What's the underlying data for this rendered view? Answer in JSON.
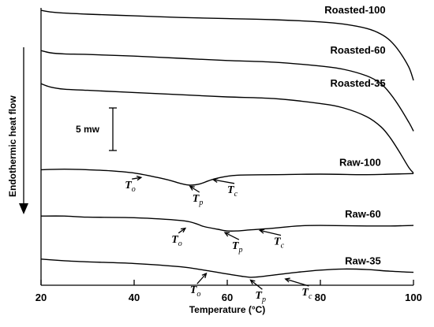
{
  "chart_data": {
    "type": "line",
    "title": "",
    "xlabel": "Temperature (°C)",
    "ylabel": "Endothermic heat flow",
    "xlim": [
      20,
      100
    ],
    "x_ticks": [
      20,
      40,
      60,
      80,
      100
    ],
    "grid": false,
    "legend": "none",
    "scale_bar_label": "5 mw",
    "series": [
      {
        "name": "Roasted-100",
        "x": [
          20,
          22,
          25,
          30,
          40,
          50,
          60,
          70,
          80,
          85,
          90,
          93,
          95,
          97,
          99,
          100
        ],
        "y": [
          0.35,
          0.2,
          0.1,
          0.0,
          -0.15,
          -0.3,
          -0.4,
          -0.5,
          -0.7,
          -0.9,
          -1.3,
          -1.8,
          -2.4,
          -3.4,
          -4.8,
          -6.0
        ]
      },
      {
        "name": "Roasted-60",
        "x": [
          20,
          22,
          25,
          30,
          40,
          50,
          60,
          70,
          80,
          85,
          90,
          93,
          95,
          97,
          99,
          100
        ],
        "y": [
          -3.3,
          -3.5,
          -3.6,
          -3.65,
          -3.8,
          -4.0,
          -4.2,
          -4.35,
          -4.7,
          -5.0,
          -5.6,
          -6.3,
          -7.2,
          -8.4,
          -9.8,
          -10.6
        ]
      },
      {
        "name": "Roasted-35",
        "x": [
          20,
          22,
          25,
          30,
          40,
          50,
          60,
          70,
          80,
          85,
          90,
          93,
          95,
          97,
          99,
          100
        ],
        "y": [
          -6.3,
          -6.6,
          -6.8,
          -6.9,
          -7.1,
          -7.3,
          -7.5,
          -7.65,
          -8.1,
          -8.5,
          -9.3,
          -10.2,
          -11.2,
          -12.5,
          -13.9,
          -14.4
        ]
      },
      {
        "name": "Raw-100",
        "x": [
          20,
          25,
          30,
          35,
          40,
          45,
          48,
          50,
          52,
          54,
          56,
          58,
          62,
          70,
          80,
          90,
          95,
          100
        ],
        "y": [
          -14.1,
          -14.05,
          -14.1,
          -14.2,
          -14.4,
          -14.8,
          -15.1,
          -15.35,
          -15.5,
          -15.4,
          -15.1,
          -14.85,
          -14.6,
          -14.55,
          -14.5,
          -14.55,
          -14.5,
          -14.45
        ]
      },
      {
        "name": "Raw-60",
        "x": [
          20,
          25,
          30,
          40,
          50,
          53,
          55,
          58,
          60,
          62,
          65,
          70,
          75,
          80,
          90,
          95,
          100
        ],
        "y": [
          -18.3,
          -18.3,
          -18.4,
          -18.45,
          -18.7,
          -18.95,
          -19.25,
          -19.5,
          -19.65,
          -19.65,
          -19.55,
          -19.4,
          -19.2,
          -19.15,
          -19.2,
          -19.2,
          -19.15
        ]
      },
      {
        "name": "Raw-35",
        "x": [
          20,
          25,
          30,
          40,
          50,
          55,
          60,
          63,
          65,
          67,
          70,
          75,
          80,
          85,
          90,
          95,
          100
        ],
        "y": [
          -22.2,
          -22.35,
          -22.45,
          -22.6,
          -22.9,
          -23.2,
          -23.55,
          -23.75,
          -23.85,
          -23.8,
          -23.65,
          -23.4,
          -23.2,
          -23.1,
          -23.15,
          -23.3,
          -23.4
        ]
      }
    ],
    "annotations": [
      {
        "letter": "T",
        "sub": "o",
        "x": 38,
        "y": -15.8,
        "arrow_x": 41.5,
        "arrow_y": -14.8
      },
      {
        "letter": "T",
        "sub": "p",
        "x": 52.5,
        "y": -17.0,
        "arrow_x": 52,
        "arrow_y": -15.6
      },
      {
        "letter": "T",
        "sub": "c",
        "x": 60,
        "y": -16.2,
        "arrow_x": 57,
        "arrow_y": -15.0
      },
      {
        "letter": "T",
        "sub": "o",
        "x": 48,
        "y": -20.7,
        "arrow_x": 51,
        "arrow_y": -19.4
      },
      {
        "letter": "T",
        "sub": "p",
        "x": 61,
        "y": -21.3,
        "arrow_x": 59.5,
        "arrow_y": -19.8
      },
      {
        "letter": "T",
        "sub": "c",
        "x": 70,
        "y": -20.9,
        "arrow_x": 67,
        "arrow_y": -19.6
      },
      {
        "letter": "T",
        "sub": "o",
        "x": 52,
        "y": -25.3,
        "arrow_x": 55.5,
        "arrow_y": -23.5
      },
      {
        "letter": "T",
        "sub": "p",
        "x": 66,
        "y": -25.8,
        "arrow_x": 65,
        "arrow_y": -24.1
      },
      {
        "letter": "T",
        "sub": "c",
        "x": 76,
        "y": -25.5,
        "arrow_x": 72.5,
        "arrow_y": -24.0
      }
    ]
  }
}
